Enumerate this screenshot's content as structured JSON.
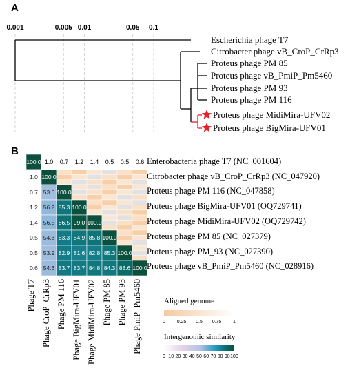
{
  "panel_a": {
    "label": "A",
    "scale_ticks": [
      "0.001",
      "0.005",
      "0.01",
      "0.05",
      "0.1"
    ],
    "leaves": [
      "Escherichia phage T7",
      "Citrobacter phage vB_CroP_CrRp3",
      "Proteus phage PM 85",
      "Proteus phage vB_PmiP_Pm5460",
      "Proteus phage PM 93",
      "Proteus phage PM 116",
      "Proteus phage MidiMira-UFV02",
      "Proteus phage BigMira-UFV01"
    ],
    "marker_icon": "star-icon",
    "highlight_color": "#e8202a"
  },
  "panel_b": {
    "label": "B",
    "top_row_values": [
      "100.0",
      "1.0",
      "0.7",
      "1.2",
      "1.4",
      "0.5",
      "0.5",
      "0.6"
    ],
    "row_labels": [
      "Enterobacteria phage T7 (NC_001604)",
      "Citrobacter phage vB_CroP_CrRp3 (NC_047920)",
      "Proteus phage PM 116 (NC_047858)",
      "Proteus phage BigMira-UFV01 (OQ729741)",
      "Proteus phage MidiMira-UFV02 (OQ729742)",
      "Proteus phage PM 85 (NC_027379)",
      "Proteus phage PM_93 (NC_027390)",
      "Proteus phage vB_PmiP_Pm5460 (NC_028916)"
    ],
    "column_labels": [
      "Phage T7",
      "Phage CroP_CrRp3",
      "Phage PM 116",
      "Phage BigMira-UFV01",
      "Phage MidiMira-UFV02",
      "Phage PM 85",
      "Phage PM 93",
      "Phage PmiP_Pm5460"
    ],
    "similarity_matrix": [
      [
        "100.0"
      ],
      [
        "1.0",
        "100.0"
      ],
      [
        "0.7",
        "53.6",
        "100.0"
      ],
      [
        "1.2",
        "56.2",
        "85.3",
        "100.0"
      ],
      [
        "1.4",
        "56.5",
        "86.5",
        "99.0",
        "100.0"
      ],
      [
        "0.5",
        "54.8",
        "83.3",
        "84.9",
        "85.8",
        "100.0"
      ],
      [
        "0.5",
        "53.9",
        "82.9",
        "81.6",
        "82.8",
        "85.3",
        "100.0"
      ],
      [
        "0.6",
        "54.6",
        "83.7",
        "83.7",
        "84.8",
        "84.3",
        "88.6",
        "100.0"
      ]
    ],
    "legend_aligned": {
      "title": "Aligned genome",
      "ticks": [
        "0",
        "0.25",
        "0.5",
        "0.75",
        "1"
      ],
      "colors": [
        "#f5c9a0",
        "#ffffff"
      ]
    },
    "legend_similarity": {
      "title": "Intergenomic similarity",
      "ticks": [
        "0",
        "10",
        "20",
        "30",
        "40",
        "50",
        "60",
        "70",
        "80",
        "90",
        "100"
      ],
      "colors": [
        "#ffffff",
        "#e6d2ea",
        "#b9c4e2",
        "#2a9bc6",
        "#0a6e6b",
        "#0b4f3c"
      ]
    }
  }
}
